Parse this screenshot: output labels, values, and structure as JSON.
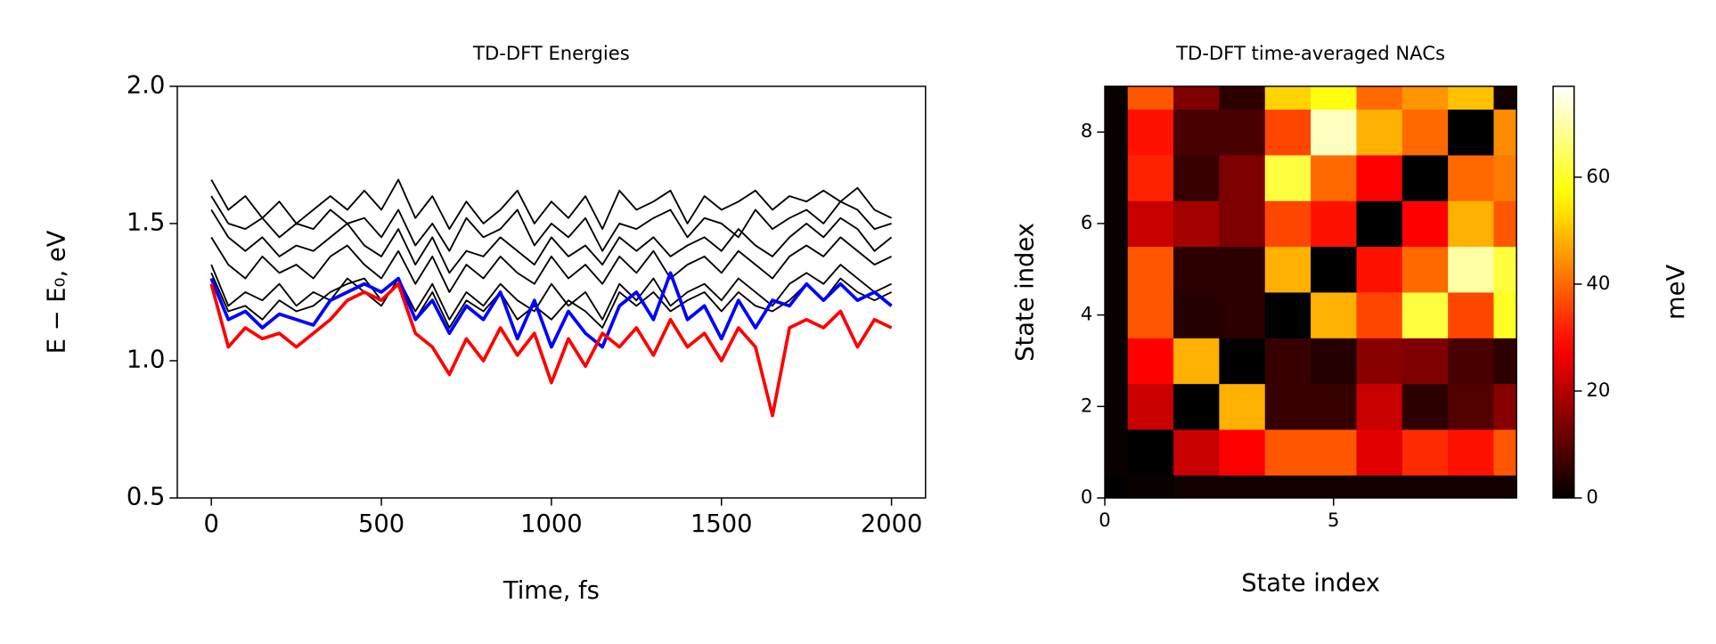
{
  "chart_data": [
    {
      "type": "line",
      "title": "TD-DFT Energies",
      "xlabel": "Time, fs",
      "ylabel": "E − E₀, eV",
      "x": [
        0,
        50,
        100,
        150,
        200,
        250,
        300,
        350,
        400,
        450,
        500,
        550,
        600,
        650,
        700,
        750,
        800,
        850,
        900,
        950,
        1000,
        1050,
        1100,
        1150,
        1200,
        1250,
        1300,
        1350,
        1400,
        1450,
        1500,
        1550,
        1600,
        1650,
        1700,
        1750,
        1800,
        1850,
        1900,
        1950,
        2000
      ],
      "xlim": [
        -100,
        2100
      ],
      "ylim": [
        0.5,
        2.0
      ],
      "xticks": [
        0,
        500,
        1000,
        1500,
        2000
      ],
      "yticks": [
        0.5,
        {
          "value": 1,
          "label": "1.0"
        },
        1.5,
        {
          "value": 2,
          "label": "2.0"
        }
      ],
      "series": [
        {
          "color": "#000000",
          "linewidth": 1.5,
          "values": [
            1.66,
            1.55,
            1.6,
            1.52,
            1.58,
            1.5,
            1.55,
            1.6,
            1.55,
            1.62,
            1.55,
            1.66,
            1.52,
            1.6,
            1.48,
            1.58,
            1.5,
            1.55,
            1.62,
            1.5,
            1.58,
            1.52,
            1.6,
            1.48,
            1.62,
            1.55,
            1.58,
            1.62,
            1.5,
            1.6,
            1.55,
            1.58,
            1.62,
            1.55,
            1.6,
            1.58,
            1.62,
            1.58,
            1.63,
            1.55,
            1.52
          ]
        },
        {
          "color": "#000000",
          "linewidth": 1.5,
          "values": [
            1.6,
            1.5,
            1.48,
            1.52,
            1.45,
            1.5,
            1.48,
            1.55,
            1.5,
            1.52,
            1.45,
            1.55,
            1.42,
            1.5,
            1.4,
            1.52,
            1.45,
            1.48,
            1.55,
            1.42,
            1.5,
            1.45,
            1.52,
            1.4,
            1.5,
            1.48,
            1.52,
            1.55,
            1.45,
            1.52,
            1.5,
            1.45,
            1.55,
            1.48,
            1.52,
            1.55,
            1.5,
            1.58,
            1.55,
            1.48,
            1.5
          ]
        },
        {
          "color": "#000000",
          "linewidth": 1.5,
          "values": [
            1.55,
            1.45,
            1.4,
            1.45,
            1.38,
            1.42,
            1.4,
            1.45,
            1.5,
            1.42,
            1.38,
            1.48,
            1.35,
            1.45,
            1.32,
            1.4,
            1.38,
            1.45,
            1.4,
            1.35,
            1.45,
            1.38,
            1.42,
            1.35,
            1.45,
            1.4,
            1.45,
            1.38,
            1.42,
            1.45,
            1.4,
            1.48,
            1.42,
            1.38,
            1.45,
            1.5,
            1.45,
            1.52,
            1.48,
            1.4,
            1.45
          ]
        },
        {
          "color": "#000000",
          "linewidth": 1.5,
          "values": [
            1.45,
            1.35,
            1.3,
            1.38,
            1.32,
            1.35,
            1.3,
            1.38,
            1.42,
            1.35,
            1.3,
            1.4,
            1.28,
            1.38,
            1.25,
            1.35,
            1.3,
            1.38,
            1.32,
            1.28,
            1.38,
            1.3,
            1.35,
            1.28,
            1.38,
            1.32,
            1.4,
            1.3,
            1.35,
            1.38,
            1.32,
            1.4,
            1.35,
            1.3,
            1.38,
            1.42,
            1.38,
            1.45,
            1.4,
            1.35,
            1.38
          ]
        },
        {
          "color": "#000000",
          "linewidth": 1.5,
          "values": [
            1.35,
            1.2,
            1.25,
            1.22,
            1.28,
            1.2,
            1.25,
            1.22,
            1.3,
            1.25,
            1.2,
            1.3,
            1.18,
            1.28,
            1.15,
            1.25,
            1.2,
            1.28,
            1.22,
            1.18,
            1.28,
            1.2,
            1.25,
            1.15,
            1.28,
            1.22,
            1.3,
            1.2,
            1.25,
            1.28,
            1.22,
            1.3,
            1.25,
            1.2,
            1.28,
            1.32,
            1.28,
            1.35,
            1.3,
            1.25,
            1.28
          ]
        },
        {
          "color": "#000000",
          "linewidth": 1.5,
          "values": [
            1.32,
            1.18,
            1.2,
            1.15,
            1.22,
            1.18,
            1.2,
            1.25,
            1.28,
            1.3,
            1.22,
            1.28,
            1.15,
            1.25,
            1.12,
            1.22,
            1.18,
            1.25,
            1.15,
            1.2,
            1.15,
            1.22,
            1.18,
            1.12,
            1.25,
            1.2,
            1.25,
            1.18,
            1.22,
            1.25,
            1.18,
            1.25,
            1.2,
            1.18,
            1.22,
            1.28,
            1.22,
            1.3,
            1.25,
            1.22,
            1.25
          ]
        },
        {
          "color": "#0000ff",
          "linewidth": 3,
          "values": [
            1.3,
            1.15,
            1.18,
            1.12,
            1.17,
            1.15,
            1.13,
            1.22,
            1.25,
            1.28,
            1.25,
            1.3,
            1.15,
            1.22,
            1.1,
            1.2,
            1.15,
            1.25,
            1.08,
            1.22,
            1.05,
            1.18,
            1.1,
            1.05,
            1.2,
            1.25,
            1.15,
            1.32,
            1.15,
            1.2,
            1.08,
            1.22,
            1.12,
            1.22,
            1.2,
            1.28,
            1.22,
            1.28,
            1.22,
            1.25,
            1.2
          ]
        },
        {
          "color": "#ff0000",
          "linewidth": 3,
          "values": [
            1.28,
            1.05,
            1.12,
            1.08,
            1.1,
            1.05,
            1.1,
            1.15,
            1.22,
            1.25,
            1.22,
            1.28,
            1.1,
            1.05,
            0.95,
            1.08,
            1.0,
            1.12,
            1.02,
            1.1,
            0.92,
            1.08,
            0.98,
            1.1,
            1.05,
            1.12,
            1.02,
            1.15,
            1.05,
            1.1,
            1.0,
            1.12,
            1.05,
            0.8,
            1.12,
            1.15,
            1.12,
            1.18,
            1.05,
            1.15,
            1.12
          ]
        }
      ]
    },
    {
      "type": "heatmap",
      "title": "TD-DFT time-averaged NACs",
      "xlabel": "State index",
      "ylabel": "State index",
      "xlim": [
        0,
        9
      ],
      "ylim": [
        0,
        9
      ],
      "xticks": [
        0,
        5
      ],
      "yticks": [
        0,
        2,
        4,
        6,
        8
      ],
      "colormap": "hot",
      "z": [
        [
          0,
          1,
          2,
          2,
          2,
          2,
          2,
          2,
          2,
          2
        ],
        [
          1,
          0,
          22,
          28,
          38,
          38,
          25,
          33,
          30,
          38
        ],
        [
          1,
          22,
          0,
          48,
          6,
          6,
          22,
          5,
          9,
          15
        ],
        [
          1,
          28,
          48,
          0,
          6,
          4,
          15,
          14,
          8,
          5
        ],
        [
          1,
          38,
          4,
          5,
          0,
          48,
          36,
          62,
          36,
          60
        ],
        [
          1,
          38,
          5,
          5,
          48,
          0,
          30,
          40,
          70,
          62
        ],
        [
          1,
          22,
          18,
          14,
          36,
          30,
          0,
          28,
          48,
          38
        ],
        [
          1,
          32,
          6,
          14,
          62,
          40,
          28,
          0,
          40,
          42
        ],
        [
          1,
          30,
          8,
          8,
          36,
          72,
          48,
          40,
          0,
          44
        ],
        [
          1,
          38,
          14,
          5,
          52,
          58,
          40,
          45,
          50,
          2
        ]
      ],
      "colorbar": {
        "label": "meV",
        "lim": [
          0,
          77
        ],
        "ticks": [
          0,
          20,
          40,
          60
        ]
      }
    }
  ]
}
